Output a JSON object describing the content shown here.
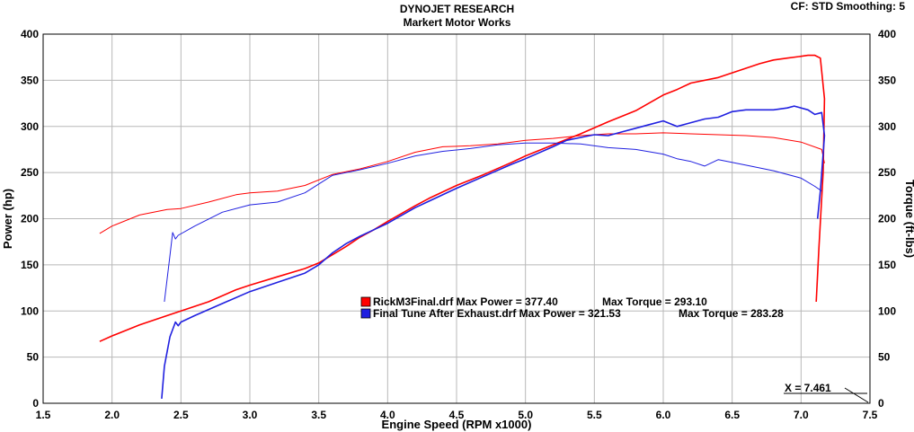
{
  "header": {
    "title": "DYNOJET RESEARCH",
    "subtitle": "Markert Motor Works",
    "cf_label": "CF: STD  Smoothing: 5"
  },
  "chart_data": {
    "type": "line",
    "xlabel": "Engine Speed (RPM x1000)",
    "ylabel_left": "Power (hp)",
    "ylabel_right": "Torque (ft-lbs)",
    "xlim": [
      1.5,
      7.5
    ],
    "ylim_left": [
      0,
      400
    ],
    "ylim_right": [
      0,
      400
    ],
    "x_ticks": [
      "1.5",
      "2.0",
      "2.5",
      "3.0",
      "3.5",
      "4.0",
      "4.5",
      "5.0",
      "5.5",
      "6.0",
      "6.5",
      "7.0",
      "7.5"
    ],
    "y_ticks": [
      "0",
      "50",
      "100",
      "150",
      "200",
      "250",
      "300",
      "350",
      "400"
    ],
    "grid": true,
    "cursor_label": "X = 7.461",
    "legend": [
      {
        "file": "RickM3Final.drf",
        "max_power_label": "Max Power = 377.40",
        "max_torque_label": "Max Torque = 293.10",
        "color": "#ff0000"
      },
      {
        "file": "Final Tune After Exhaust.drf",
        "max_power_label": "Max Power = 321.53",
        "max_torque_label": "Max Torque = 283.28",
        "color": "#2020e0"
      }
    ],
    "series": [
      {
        "name": "RickM3Final.drf",
        "measure": "Power",
        "color": "#ff0000",
        "points": [
          [
            1.91,
            67
          ],
          [
            2.0,
            73
          ],
          [
            2.2,
            85
          ],
          [
            2.4,
            95
          ],
          [
            2.5,
            100
          ],
          [
            2.7,
            110
          ],
          [
            2.9,
            123
          ],
          [
            3.0,
            128
          ],
          [
            3.2,
            137
          ],
          [
            3.4,
            146
          ],
          [
            3.5,
            152
          ],
          [
            3.7,
            170
          ],
          [
            3.8,
            180
          ],
          [
            3.9,
            188
          ],
          [
            4.0,
            197
          ],
          [
            4.2,
            214
          ],
          [
            4.3,
            222
          ],
          [
            4.5,
            236
          ],
          [
            4.7,
            248
          ],
          [
            4.9,
            261
          ],
          [
            5.0,
            268
          ],
          [
            5.2,
            280
          ],
          [
            5.4,
            292
          ],
          [
            5.6,
            305
          ],
          [
            5.8,
            317
          ],
          [
            6.0,
            334
          ],
          [
            6.1,
            340
          ],
          [
            6.2,
            347
          ],
          [
            6.4,
            353
          ],
          [
            6.6,
            363
          ],
          [
            6.7,
            368
          ],
          [
            6.8,
            372
          ],
          [
            6.9,
            374
          ],
          [
            7.0,
            376
          ],
          [
            7.05,
            377
          ],
          [
            7.1,
            377
          ],
          [
            7.14,
            374
          ],
          [
            7.17,
            330
          ],
          [
            7.16,
            250
          ],
          [
            7.13,
            170
          ],
          [
            7.11,
            110
          ]
        ]
      },
      {
        "name": "RickM3Final.drf",
        "measure": "Torque",
        "color": "#ff0000",
        "points": [
          [
            1.91,
            184
          ],
          [
            2.0,
            192
          ],
          [
            2.2,
            204
          ],
          [
            2.4,
            210
          ],
          [
            2.5,
            211
          ],
          [
            2.7,
            218
          ],
          [
            2.9,
            226
          ],
          [
            3.0,
            228
          ],
          [
            3.2,
            230
          ],
          [
            3.4,
            236
          ],
          [
            3.6,
            248
          ],
          [
            3.8,
            254
          ],
          [
            4.0,
            262
          ],
          [
            4.2,
            272
          ],
          [
            4.4,
            278
          ],
          [
            4.6,
            279
          ],
          [
            4.8,
            281
          ],
          [
            5.0,
            285
          ],
          [
            5.2,
            287
          ],
          [
            5.4,
            290
          ],
          [
            5.6,
            292
          ],
          [
            5.8,
            292
          ],
          [
            6.0,
            293
          ],
          [
            6.2,
            292
          ],
          [
            6.4,
            291
          ],
          [
            6.6,
            290
          ],
          [
            6.8,
            288
          ],
          [
            7.0,
            283
          ],
          [
            7.15,
            275
          ],
          [
            7.17,
            260
          ]
        ]
      },
      {
        "name": "Final Tune After Exhaust.drf",
        "measure": "Power",
        "color": "#2020e0",
        "points": [
          [
            2.36,
            5
          ],
          [
            2.38,
            40
          ],
          [
            2.42,
            72
          ],
          [
            2.46,
            88
          ],
          [
            2.48,
            84
          ],
          [
            2.5,
            88
          ],
          [
            2.6,
            95
          ],
          [
            2.8,
            108
          ],
          [
            3.0,
            121
          ],
          [
            3.2,
            131
          ],
          [
            3.4,
            141
          ],
          [
            3.5,
            150
          ],
          [
            3.6,
            163
          ],
          [
            3.7,
            173
          ],
          [
            3.8,
            181
          ],
          [
            3.9,
            188
          ],
          [
            4.0,
            195
          ],
          [
            4.2,
            212
          ],
          [
            4.3,
            219
          ],
          [
            4.5,
            233
          ],
          [
            4.7,
            246
          ],
          [
            4.9,
            259
          ],
          [
            5.0,
            265
          ],
          [
            5.2,
            278
          ],
          [
            5.3,
            285
          ],
          [
            5.5,
            291
          ],
          [
            5.6,
            290
          ],
          [
            5.7,
            294
          ],
          [
            5.8,
            298
          ],
          [
            5.9,
            302
          ],
          [
            6.0,
            306
          ],
          [
            6.1,
            300
          ],
          [
            6.2,
            304
          ],
          [
            6.3,
            308
          ],
          [
            6.4,
            310
          ],
          [
            6.5,
            316
          ],
          [
            6.6,
            318
          ],
          [
            6.8,
            318
          ],
          [
            6.9,
            320
          ],
          [
            6.95,
            322
          ],
          [
            7.05,
            318
          ],
          [
            7.1,
            313
          ],
          [
            7.15,
            315
          ],
          [
            7.17,
            290
          ],
          [
            7.14,
            230
          ],
          [
            7.12,
            200
          ]
        ]
      },
      {
        "name": "Final Tune After Exhaust.drf",
        "measure": "Torque",
        "color": "#2020e0",
        "points": [
          [
            2.38,
            110
          ],
          [
            2.42,
            160
          ],
          [
            2.44,
            185
          ],
          [
            2.46,
            178
          ],
          [
            2.48,
            182
          ],
          [
            2.6,
            192
          ],
          [
            2.8,
            207
          ],
          [
            3.0,
            215
          ],
          [
            3.2,
            218
          ],
          [
            3.4,
            228
          ],
          [
            3.6,
            247
          ],
          [
            3.8,
            253
          ],
          [
            4.0,
            260
          ],
          [
            4.2,
            268
          ],
          [
            4.4,
            273
          ],
          [
            4.6,
            276
          ],
          [
            4.8,
            280
          ],
          [
            5.0,
            282
          ],
          [
            5.2,
            282
          ],
          [
            5.4,
            281
          ],
          [
            5.6,
            277
          ],
          [
            5.8,
            275
          ],
          [
            6.0,
            270
          ],
          [
            6.1,
            265
          ],
          [
            6.2,
            262
          ],
          [
            6.3,
            257
          ],
          [
            6.4,
            264
          ],
          [
            6.6,
            258
          ],
          [
            6.8,
            252
          ],
          [
            7.0,
            244
          ],
          [
            7.1,
            235
          ],
          [
            7.15,
            230
          ]
        ]
      }
    ]
  }
}
